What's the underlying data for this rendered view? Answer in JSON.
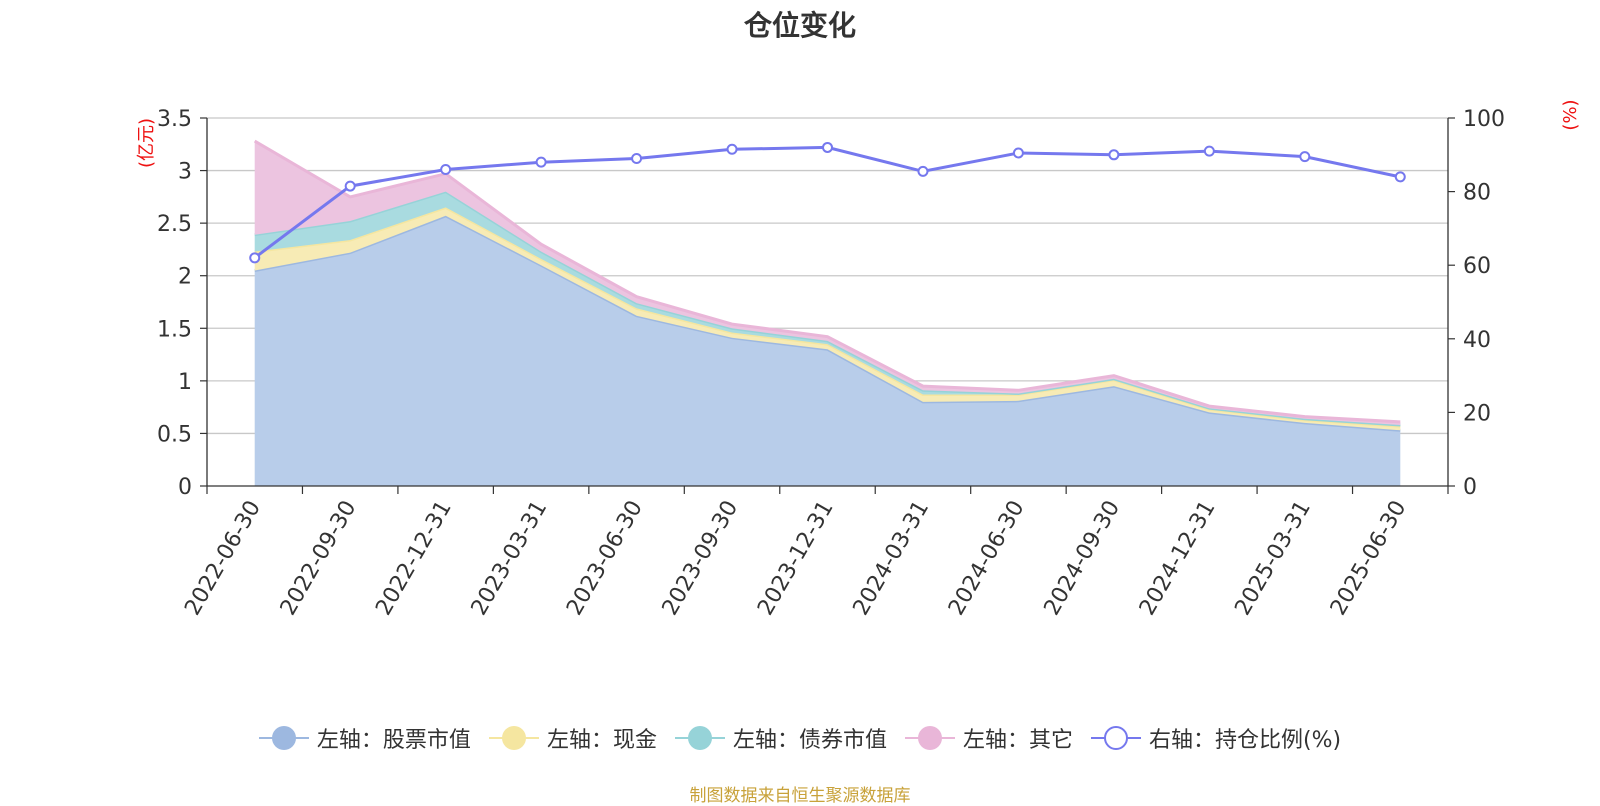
{
  "chart_data": {
    "type": "area",
    "title": "仓位变化",
    "left_axis_label": "(亿元)",
    "right_axis_label": "(%)",
    "categories": [
      "2022-06-30",
      "2022-09-30",
      "2022-12-31",
      "2023-03-31",
      "2023-06-30",
      "2023-09-30",
      "2023-12-31",
      "2024-03-31",
      "2024-06-30",
      "2024-09-30",
      "2024-12-31",
      "2025-03-31",
      "2025-06-30"
    ],
    "left_ylim": [
      0,
      3.5
    ],
    "left_ticks": [
      "0",
      "0.5",
      "1",
      "1.5",
      "2",
      "2.5",
      "3",
      "3.5"
    ],
    "right_ylim": [
      0,
      100
    ],
    "right_ticks": [
      "0",
      "20",
      "40",
      "60",
      "80",
      "100"
    ],
    "series": [
      {
        "name": "左轴：股票市值",
        "axis": "left",
        "stacked": true,
        "color": "#9db8e0",
        "fill": "#b8cdea",
        "values": [
          2.05,
          2.22,
          2.57,
          2.1,
          1.62,
          1.41,
          1.3,
          0.8,
          0.81,
          0.95,
          0.7,
          0.6,
          0.53
        ]
      },
      {
        "name": "左轴：现金",
        "axis": "left",
        "stacked": true,
        "color": "#f5e6a0",
        "fill": "#f7ebb5",
        "values": [
          0.18,
          0.12,
          0.08,
          0.06,
          0.07,
          0.05,
          0.05,
          0.07,
          0.06,
          0.06,
          0.03,
          0.03,
          0.04
        ]
      },
      {
        "name": "左轴：债券市值",
        "axis": "left",
        "stacked": true,
        "color": "#96d3d8",
        "fill": "#a9dbe0",
        "values": [
          0.16,
          0.18,
          0.15,
          0.07,
          0.05,
          0.04,
          0.03,
          0.04,
          0.01,
          0.01,
          0.01,
          0.01,
          0.01
        ]
      },
      {
        "name": "左轴：其它",
        "axis": "left",
        "stacked": true,
        "color": "#e9b6d8",
        "fill": "#ecc4e0",
        "values": [
          0.89,
          0.23,
          0.17,
          0.07,
          0.06,
          0.04,
          0.04,
          0.04,
          0.03,
          0.03,
          0.02,
          0.02,
          0.03
        ]
      },
      {
        "name": "右轴：持仓比例(%)",
        "axis": "right",
        "stacked": false,
        "color": "#7578ee",
        "values": [
          62.0,
          81.5,
          86.0,
          88.0,
          89.0,
          91.5,
          92.0,
          85.5,
          90.5,
          90.0,
          91.0,
          89.5,
          84.0
        ]
      }
    ],
    "grid": true,
    "legend_position": "bottom"
  },
  "source_note": "制图数据来自恒生聚源数据库"
}
